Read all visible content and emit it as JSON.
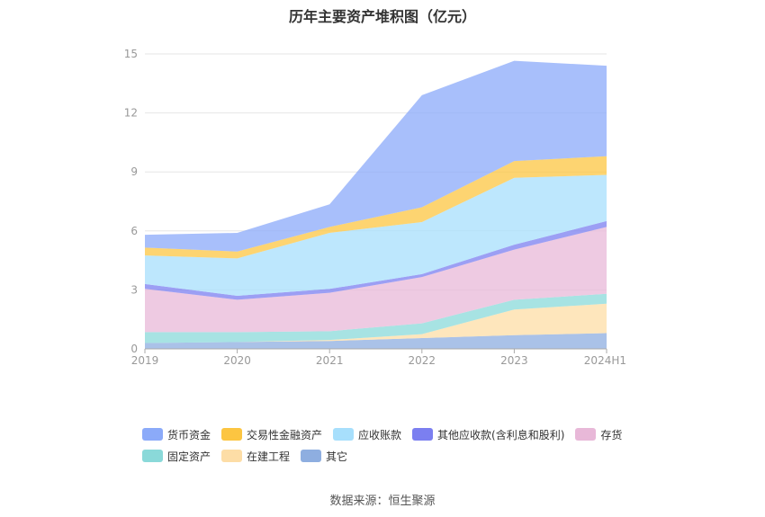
{
  "chart_data": {
    "type": "area",
    "stacked": true,
    "title": "历年主要资产堆积图（亿元）",
    "categories": [
      "2019",
      "2020",
      "2021",
      "2022",
      "2023",
      "2024H1"
    ],
    "ylim": [
      0,
      15
    ],
    "yticks": [
      0,
      3,
      6,
      9,
      12,
      15
    ],
    "grid": true,
    "legend_position": "bottom",
    "series": [
      {
        "name": "其它",
        "color": "#8eaee0",
        "values": [
          0.3,
          0.35,
          0.4,
          0.55,
          0.7,
          0.8
        ]
      },
      {
        "name": "在建工程",
        "color": "#fddda6",
        "values": [
          0.0,
          0.0,
          0.05,
          0.2,
          1.3,
          1.5
        ]
      },
      {
        "name": "固定资产",
        "color": "#8ad9d9",
        "values": [
          0.55,
          0.5,
          0.45,
          0.55,
          0.5,
          0.5
        ]
      },
      {
        "name": "存货",
        "color": "#e8b8d8",
        "values": [
          2.2,
          1.65,
          1.95,
          2.35,
          2.55,
          3.4
        ]
      },
      {
        "name": "其他应收款(含利息和股利)",
        "color": "#7b7ff0",
        "values": [
          0.25,
          0.2,
          0.2,
          0.15,
          0.25,
          0.3
        ]
      },
      {
        "name": "应收账款",
        "color": "#a7dffc",
        "values": [
          1.45,
          1.9,
          2.85,
          2.65,
          3.4,
          2.35
        ]
      },
      {
        "name": "交易性金融资产",
        "color": "#fcc541",
        "values": [
          0.4,
          0.35,
          0.3,
          0.75,
          0.85,
          0.95
        ]
      },
      {
        "name": "货币资金",
        "color": "#8baaf9",
        "values": [
          0.65,
          0.95,
          1.15,
          5.7,
          5.1,
          4.6
        ]
      }
    ],
    "legend": [
      "货币资金",
      "交易性金融资产",
      "应收账款",
      "其他应收款(含利息和股利)",
      "存货",
      "固定资产",
      "在建工程",
      "其它"
    ],
    "source": "数据来源：恒生聚源"
  }
}
